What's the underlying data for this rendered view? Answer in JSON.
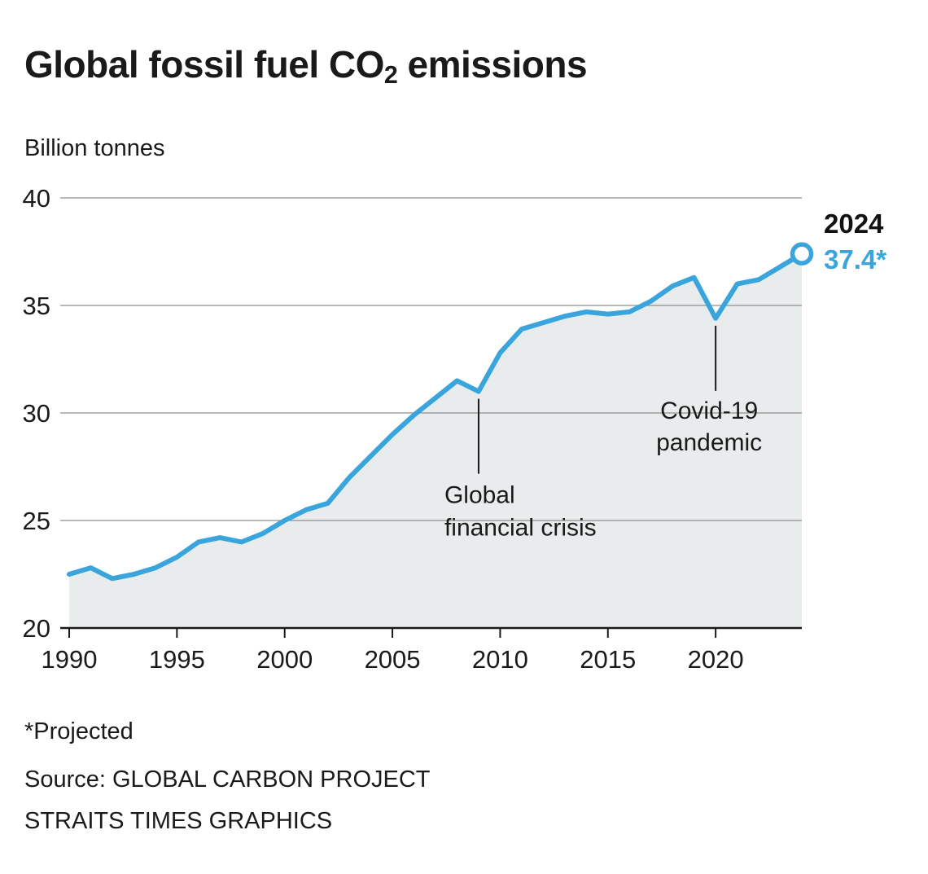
{
  "header": {
    "title_prefix": "Global fossil fuel CO",
    "title_sub": "2",
    "title_suffix": " emissions",
    "unit_label": "Billion tonnes"
  },
  "chart_data": {
    "type": "area",
    "title": "Global fossil fuel CO2 emissions",
    "xlabel": "",
    "ylabel": "Billion tonnes",
    "xlim": [
      1990,
      2024
    ],
    "ylim": [
      20,
      40
    ],
    "x_ticks": [
      1990,
      1995,
      2000,
      2005,
      2010,
      2015,
      2020
    ],
    "y_ticks": [
      20,
      25,
      30,
      35,
      40
    ],
    "grid": "horizontal",
    "legend": "none",
    "line_color": "#3aa5dc",
    "area_color": "#e8ecec",
    "x": [
      1990,
      1991,
      1992,
      1993,
      1994,
      1995,
      1996,
      1997,
      1998,
      1999,
      2000,
      2001,
      2002,
      2003,
      2004,
      2005,
      2006,
      2007,
      2008,
      2009,
      2010,
      2011,
      2012,
      2013,
      2014,
      2015,
      2016,
      2017,
      2018,
      2019,
      2020,
      2021,
      2022,
      2023,
      2024
    ],
    "series": [
      {
        "name": "Global fossil fuel CO2 emissions (billion tonnes)",
        "values": [
          22.5,
          22.8,
          22.3,
          22.5,
          22.8,
          23.3,
          24.0,
          24.2,
          24.0,
          24.4,
          25.0,
          25.5,
          25.8,
          27.0,
          28.0,
          29.0,
          29.9,
          30.7,
          31.5,
          31.0,
          32.8,
          33.9,
          34.2,
          34.5,
          34.7,
          34.6,
          34.7,
          35.2,
          35.9,
          36.3,
          34.4,
          36.0,
          36.2,
          36.8,
          37.4
        ]
      }
    ],
    "annotations": [
      {
        "label_lines": [
          "Global",
          "financial crisis"
        ],
        "year": 2009,
        "value": 31.0
      },
      {
        "label_lines": [
          "Covid-19",
          "pandemic"
        ],
        "year": 2020,
        "value": 34.4
      }
    ],
    "end_label": {
      "year_text": "2024",
      "value_text": "37.4*",
      "year": 2024,
      "value": 37.4
    }
  },
  "footer": {
    "footnote": "*Projected",
    "source": "Source: GLOBAL CARBON PROJECT",
    "credit": "STRAITS TIMES GRAPHICS"
  }
}
